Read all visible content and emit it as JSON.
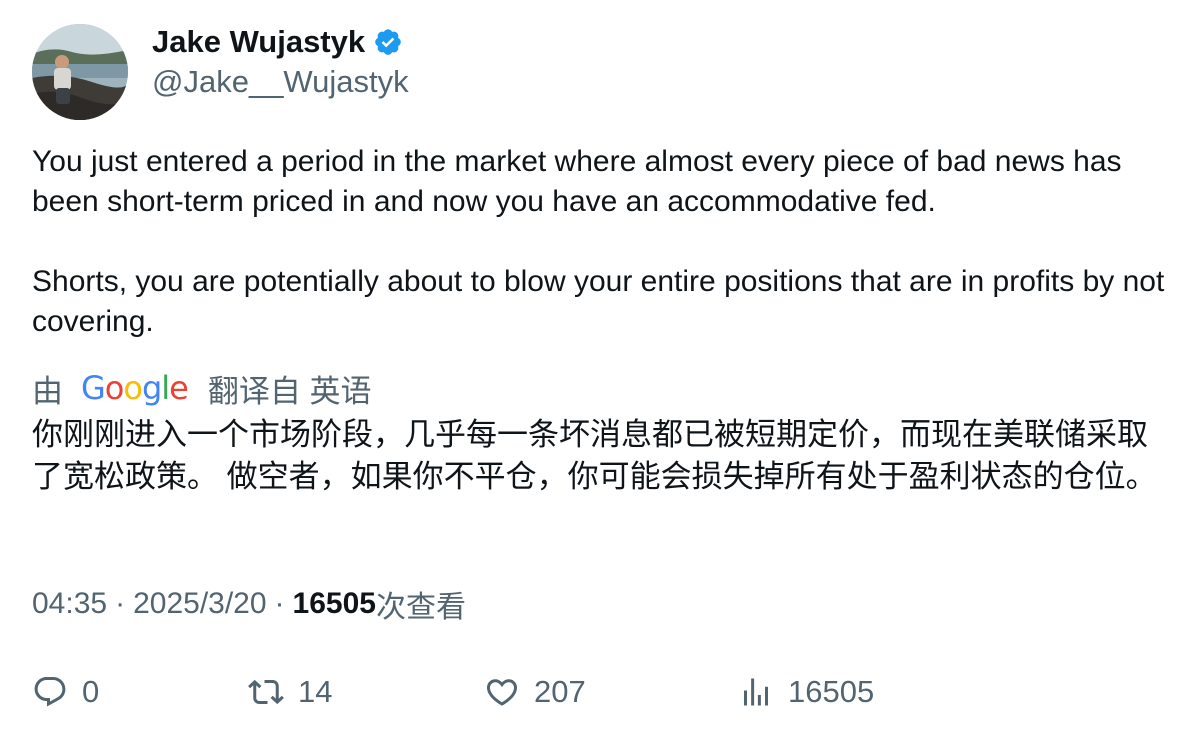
{
  "author": {
    "display_name": "Jake Wujastyk",
    "handle": "@Jake__Wujastyk",
    "verified": true,
    "verified_color": "#1d9bf0"
  },
  "tweet": {
    "text": "You just entered a period in the market where almost every piece of bad news has been short-term priced in and now you have an accommodative fed.\n\nShorts, you are potentially about to blow your entire positions that are in profits by not covering."
  },
  "translation": {
    "prefix": "由",
    "provider": "Google",
    "suffix": "翻译自 英语",
    "text": "你刚刚进入一个市场阶段，几乎每一条坏消息都已被短期定价，而现在美联储采取了宽松政策。 做空者，如果你不平仓，你可能会损失掉所有处于盈利状态的仓位。"
  },
  "meta": {
    "time": "04:35",
    "separator": "·",
    "date": "2025/3/20",
    "views_count": "16505",
    "views_label": "次查看"
  },
  "actions": {
    "replies": "0",
    "retweets": "14",
    "likes": "207",
    "views": "16505"
  },
  "colors": {
    "text_primary": "#0f1419",
    "text_secondary": "#536471",
    "google_blue": "#4285F4",
    "google_red": "#EA4335",
    "google_yellow": "#FBBC05",
    "google_green": "#34A853"
  }
}
